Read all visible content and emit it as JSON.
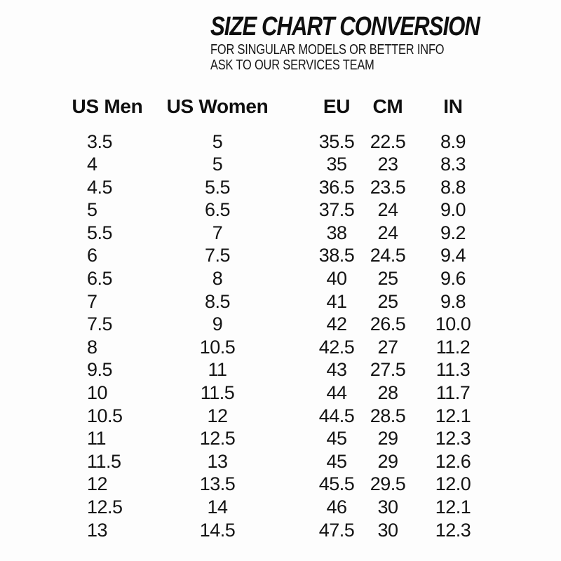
{
  "header": {
    "title": "SIZE CHART CONVERSION",
    "subtitle_line1": "FOR SINGULAR MODELS OR BETTER INFO",
    "subtitle_line2": "ASK TO OUR SERVICES TEAM"
  },
  "colors": {
    "text": "#141414",
    "background": "#fdfdfd"
  },
  "chart_data": {
    "type": "table",
    "title": "SIZE CHART CONVERSION",
    "columns": [
      "US Men",
      "US Women",
      "EU",
      "CM",
      "IN"
    ],
    "rows": [
      [
        "3.5",
        "5",
        "35.5",
        "22.5",
        "8.9"
      ],
      [
        "4",
        "5",
        "35",
        "23",
        "8.3"
      ],
      [
        "4.5",
        "5.5",
        "36.5",
        "23.5",
        "8.8"
      ],
      [
        "5",
        "6.5",
        "37.5",
        "24",
        "9.0"
      ],
      [
        "5.5",
        "7",
        "38",
        "24",
        "9.2"
      ],
      [
        "6",
        "7.5",
        "38.5",
        "24.5",
        "9.4"
      ],
      [
        "6.5",
        "8",
        "40",
        "25",
        "9.6"
      ],
      [
        "7",
        "8.5",
        "41",
        "25",
        "9.8"
      ],
      [
        "7.5",
        "9",
        "42",
        "26.5",
        "10.0"
      ],
      [
        "8",
        "10.5",
        "42.5",
        "27",
        "11.2"
      ],
      [
        "9.5",
        "11",
        "43",
        "27.5",
        "11.3"
      ],
      [
        "10",
        "11.5",
        "44",
        "28",
        "11.7"
      ],
      [
        "10.5",
        "12",
        "44.5",
        "28.5",
        "12.1"
      ],
      [
        "11",
        "12.5",
        "45",
        "29",
        "12.3"
      ],
      [
        "11.5",
        "13",
        "45",
        "29",
        "12.6"
      ],
      [
        "12",
        "13.5",
        "45.5",
        "29.5",
        "12.0"
      ],
      [
        "12.5",
        "14",
        "46",
        "30",
        "12.1"
      ],
      [
        "13",
        "14.5",
        "47.5",
        "30",
        "12.3"
      ]
    ]
  }
}
